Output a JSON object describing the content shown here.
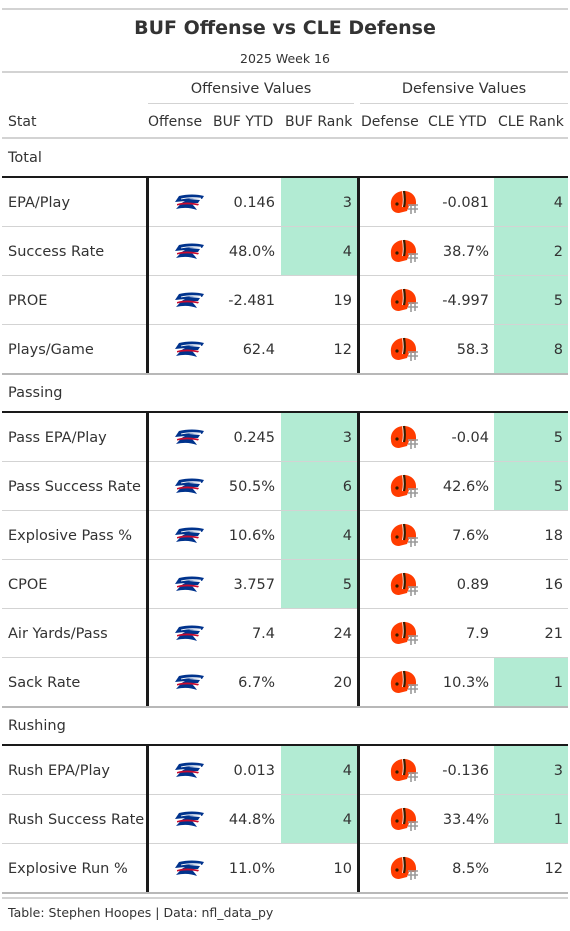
{
  "title": "BUF Offense vs CLE Defense",
  "subtitle": "2025 Week 16",
  "spanners": {
    "offense": "Offensive Values",
    "defense": "Defensive Values"
  },
  "columns": {
    "stat": "Stat",
    "offense": "Offense",
    "buf_ytd": "BUF YTD",
    "buf_rank": "BUF Rank",
    "defense": "Defense",
    "cle_ytd": "CLE YTD",
    "cle_rank": "CLE Rank"
  },
  "colors": {
    "highlight": "#b2ebd3",
    "bills_blue": "#00338d",
    "bills_red": "#c60c30",
    "browns_orange": "#ff3c00",
    "browns_brown": "#311d00"
  },
  "icons": {
    "offense_logo": "bills-logo-icon",
    "defense_logo": "browns-helmet-icon"
  },
  "groups": [
    {
      "label": "Total",
      "rows": [
        {
          "stat": "EPA/Play",
          "buf_ytd": "0.146",
          "buf_rank": "3",
          "buf_hl": true,
          "cle_ytd": "-0.081",
          "cle_rank": "4",
          "cle_hl": true
        },
        {
          "stat": "Success Rate",
          "buf_ytd": "48.0%",
          "buf_rank": "4",
          "buf_hl": true,
          "cle_ytd": "38.7%",
          "cle_rank": "2",
          "cle_hl": true
        },
        {
          "stat": "PROE",
          "buf_ytd": "-2.481",
          "buf_rank": "19",
          "buf_hl": false,
          "cle_ytd": "-4.997",
          "cle_rank": "5",
          "cle_hl": true
        },
        {
          "stat": "Plays/Game",
          "buf_ytd": "62.4",
          "buf_rank": "12",
          "buf_hl": false,
          "cle_ytd": "58.3",
          "cle_rank": "8",
          "cle_hl": true
        }
      ]
    },
    {
      "label": "Passing",
      "rows": [
        {
          "stat": "Pass EPA/Play",
          "buf_ytd": "0.245",
          "buf_rank": "3",
          "buf_hl": true,
          "cle_ytd": "-0.04",
          "cle_rank": "5",
          "cle_hl": true
        },
        {
          "stat": "Pass Success Rate",
          "buf_ytd": "50.5%",
          "buf_rank": "6",
          "buf_hl": true,
          "cle_ytd": "42.6%",
          "cle_rank": "5",
          "cle_hl": true
        },
        {
          "stat": "Explosive Pass %",
          "buf_ytd": "10.6%",
          "buf_rank": "4",
          "buf_hl": true,
          "cle_ytd": "7.6%",
          "cle_rank": "18",
          "cle_hl": false
        },
        {
          "stat": "CPOE",
          "buf_ytd": "3.757",
          "buf_rank": "5",
          "buf_hl": true,
          "cle_ytd": "0.89",
          "cle_rank": "16",
          "cle_hl": false
        },
        {
          "stat": "Air Yards/Pass",
          "buf_ytd": "7.4",
          "buf_rank": "24",
          "buf_hl": false,
          "cle_ytd": "7.9",
          "cle_rank": "21",
          "cle_hl": false
        },
        {
          "stat": "Sack Rate",
          "buf_ytd": "6.7%",
          "buf_rank": "20",
          "buf_hl": false,
          "cle_ytd": "10.3%",
          "cle_rank": "1",
          "cle_hl": true
        }
      ]
    },
    {
      "label": "Rushing",
      "rows": [
        {
          "stat": "Rush EPA/Play",
          "buf_ytd": "0.013",
          "buf_rank": "4",
          "buf_hl": true,
          "cle_ytd": "-0.136",
          "cle_rank": "3",
          "cle_hl": true
        },
        {
          "stat": "Rush Success Rate",
          "buf_ytd": "44.8%",
          "buf_rank": "4",
          "buf_hl": true,
          "cle_ytd": "33.4%",
          "cle_rank": "1",
          "cle_hl": true
        },
        {
          "stat": "Explosive Run %",
          "buf_ytd": "11.0%",
          "buf_rank": "10",
          "buf_hl": false,
          "cle_ytd": "8.5%",
          "cle_rank": "12",
          "cle_hl": false
        }
      ]
    }
  ],
  "footer": "Table: Stephen Hoopes | Data: nfl_data_py"
}
